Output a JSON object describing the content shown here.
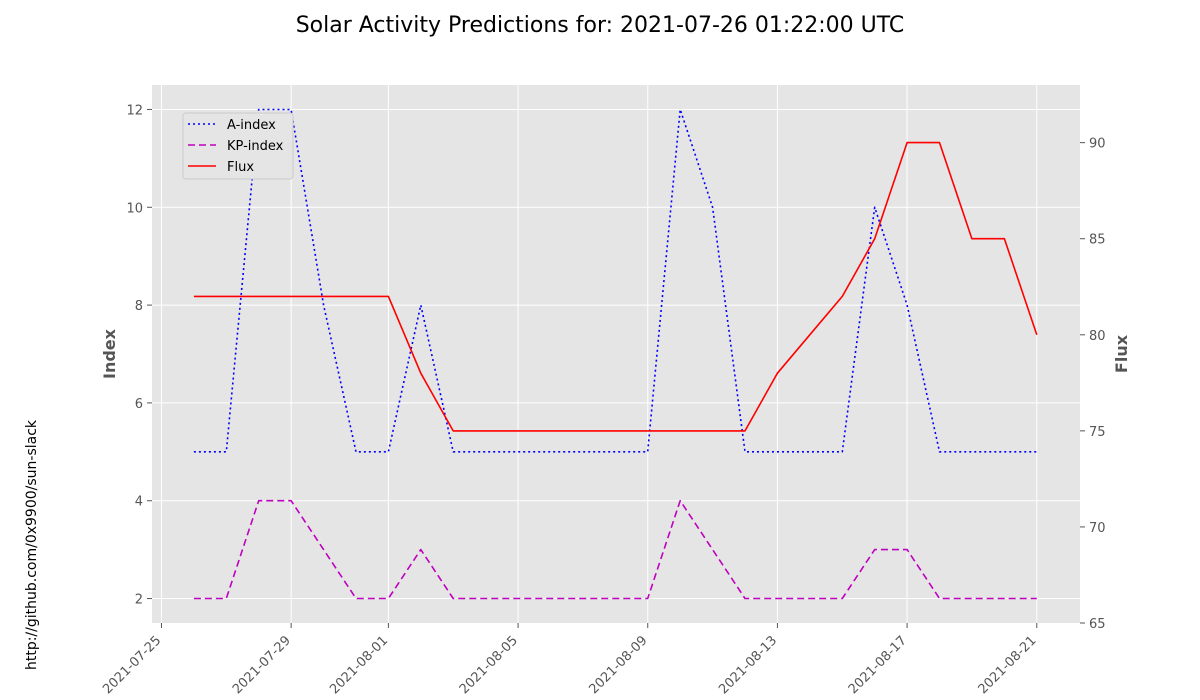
{
  "chart_data": {
    "type": "line",
    "title": "Solar Activity Predictions for: 2021-07-26 01:22:00 UTC",
    "ylabel_left": "Index",
    "ylabel_right": "Flux",
    "side_text": "http://github.com/0x9900/sun-slack",
    "x": [
      "2021-07-26",
      "2021-07-27",
      "2021-07-28",
      "2021-07-29",
      "2021-07-30",
      "2021-07-31",
      "2021-08-01",
      "2021-08-02",
      "2021-08-03",
      "2021-08-04",
      "2021-08-05",
      "2021-08-06",
      "2021-08-07",
      "2021-08-08",
      "2021-08-09",
      "2021-08-10",
      "2021-08-11",
      "2021-08-12",
      "2021-08-13",
      "2021-08-14",
      "2021-08-15",
      "2021-08-16",
      "2021-08-17",
      "2021-08-18",
      "2021-08-19",
      "2021-08-20",
      "2021-08-21"
    ],
    "x_ticks": [
      "2021-07-25",
      "2021-07-29",
      "2021-08-01",
      "2021-08-05",
      "2021-08-09",
      "2021-08-13",
      "2021-08-17",
      "2021-08-21"
    ],
    "xlim": [
      "2021-07-24 17:00",
      "2021-08-22 08:00"
    ],
    "ylim_left": [
      1.5,
      12.5
    ],
    "ylim_right": [
      65,
      93
    ],
    "yticks_left": [
      2,
      4,
      6,
      8,
      10,
      12
    ],
    "yticks_right": [
      65,
      70,
      75,
      80,
      85,
      90
    ],
    "grid": true,
    "legend_position": "top-left",
    "series": [
      {
        "name": "A-index",
        "axis": "left",
        "color": "#0000ff",
        "style": "dotted",
        "values": [
          5,
          5,
          12,
          12,
          8,
          5,
          5,
          8,
          5,
          5,
          5,
          5,
          5,
          5,
          5,
          12,
          10,
          5,
          5,
          5,
          5,
          10,
          8,
          5,
          5,
          5,
          5
        ]
      },
      {
        "name": "KP-index",
        "axis": "left",
        "color": "#bf00bf",
        "style": "dashed",
        "values": [
          2,
          2,
          4,
          4,
          3,
          2,
          2,
          3,
          2,
          2,
          2,
          2,
          2,
          2,
          2,
          4,
          3,
          2,
          2,
          2,
          2,
          3,
          3,
          2,
          2,
          2,
          2
        ]
      },
      {
        "name": "Flux",
        "axis": "right",
        "color": "#ff0000",
        "style": "solid",
        "values": [
          82,
          82,
          82,
          82,
          82,
          82,
          82,
          78,
          75,
          75,
          75,
          75,
          75,
          75,
          75,
          75,
          75,
          75,
          78,
          80,
          82,
          85,
          90,
          90,
          85,
          85,
          80
        ]
      }
    ]
  }
}
